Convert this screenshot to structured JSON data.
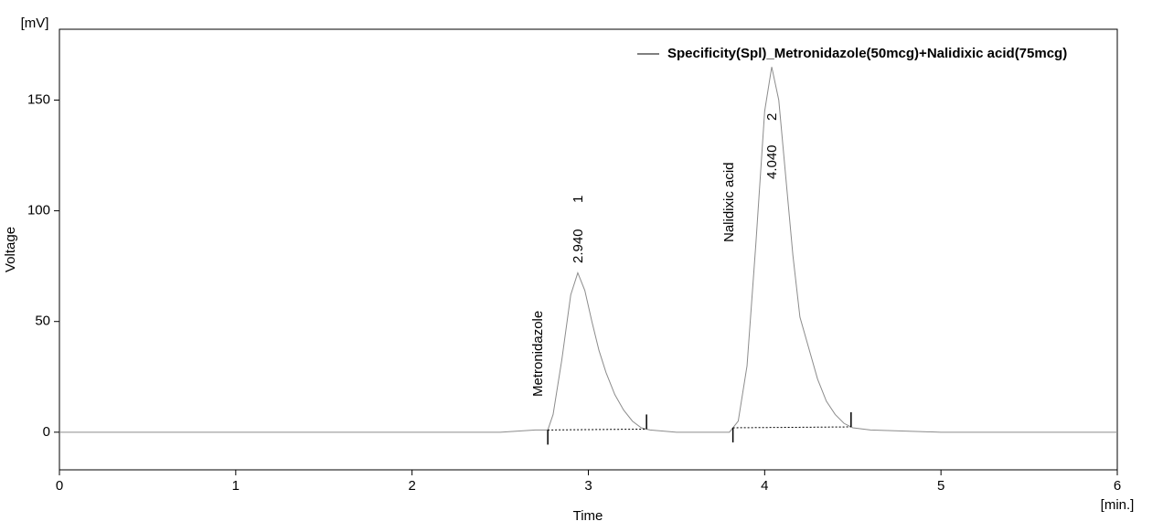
{
  "chart_data": {
    "type": "line",
    "y_unit": "[mV]",
    "x_unit": "[min.]",
    "ylabel": "Voltage",
    "xlabel": "Time",
    "x": [
      0,
      0.5,
      1,
      1.5,
      2,
      2.5,
      2.6,
      2.7,
      2.77,
      2.8,
      2.85,
      2.9,
      2.94,
      2.98,
      3.02,
      3.06,
      3.1,
      3.15,
      3.2,
      3.25,
      3.3,
      3.35,
      3.5,
      3.7,
      3.8,
      3.85,
      3.9,
      3.95,
      4.0,
      4.04,
      4.08,
      4.12,
      4.16,
      4.2,
      4.25,
      4.3,
      4.35,
      4.4,
      4.45,
      4.5,
      4.6,
      5,
      5.5,
      6
    ],
    "series": [
      {
        "name": "Specificity(Spl)_Metronidazole(50mcg)+Nalidixic acid(75mcg)",
        "color": "#8c8c8c",
        "values": [
          0,
          0,
          0,
          0,
          0,
          0,
          0.5,
          1,
          1,
          8,
          33,
          62,
          72,
          64,
          50,
          37,
          27,
          17,
          10,
          5,
          2,
          1,
          0,
          0,
          0,
          5,
          30,
          85,
          145,
          165,
          150,
          115,
          80,
          52,
          38,
          24,
          14,
          8,
          4,
          2,
          1,
          0,
          0,
          0
        ]
      }
    ],
    "peaks": [
      {
        "retention_time": {
          "value": 2.94,
          "label": "2.940"
        },
        "number": "1",
        "name": "Metronidazole",
        "start": 2.77,
        "end": 3.33
      },
      {
        "retention_time": {
          "value": 4.04,
          "label": "4.040"
        },
        "number": "2",
        "name": "Nalidixic acid",
        "start": 3.82,
        "end": 4.49
      }
    ],
    "xlim": [
      0,
      6
    ],
    "ylim": [
      -17,
      182
    ],
    "xticks": [
      0,
      1,
      2,
      3,
      4,
      5,
      6
    ],
    "yticks": [
      0,
      50,
      100,
      150
    ],
    "legend_color": "#000000"
  }
}
